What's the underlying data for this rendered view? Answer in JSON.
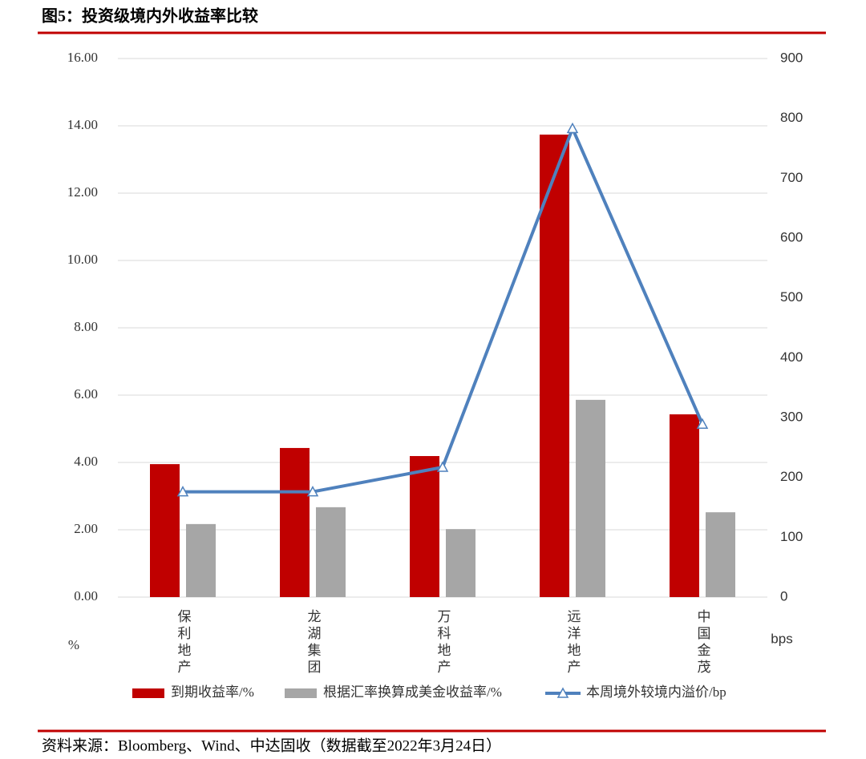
{
  "title": "图5：投资级境内外收益率比较",
  "source": "资料来源：Bloomberg、Wind、中达固收（数据截至2022年3月24日）",
  "chart_data": {
    "type": "bar",
    "categories": [
      "保利地产",
      "龙湖集团",
      "万科地产",
      "远洋地产",
      "中国金茂"
    ],
    "series": [
      {
        "name": "到期收益率/%",
        "type": "bar",
        "color": "#c00000",
        "values": [
          3.95,
          4.43,
          4.19,
          13.74,
          5.43
        ]
      },
      {
        "name": "根据汇率换算成美金收益率/%",
        "type": "bar",
        "color": "#a6a6a6",
        "values": [
          2.17,
          2.67,
          2.02,
          5.86,
          2.52
        ]
      },
      {
        "name": "本周境外较境内溢价/bp",
        "type": "line",
        "axis": "y2",
        "color": "#4f81bd",
        "values": [
          176,
          176,
          217,
          783,
          289
        ]
      }
    ],
    "y_label": "%",
    "y2_label": "bps",
    "ylim": [
      0,
      16
    ],
    "yticks": [
      {
        "value": 0,
        "label": "0.00"
      },
      {
        "value": 2,
        "label": "2.00"
      },
      {
        "value": 4,
        "label": "4.00"
      },
      {
        "value": 6,
        "label": "6.00"
      },
      {
        "value": 8,
        "label": "8.00"
      },
      {
        "value": 10,
        "label": "10.00"
      },
      {
        "value": 12,
        "label": "12.00"
      },
      {
        "value": 14,
        "label": "14.00"
      },
      {
        "value": 16,
        "label": "16.00"
      }
    ],
    "y2lim": [
      0,
      900
    ],
    "y2ticks": [
      0,
      100,
      200,
      300,
      400,
      500,
      600,
      700,
      800,
      900
    ],
    "grid": true,
    "legend": "bottom"
  }
}
